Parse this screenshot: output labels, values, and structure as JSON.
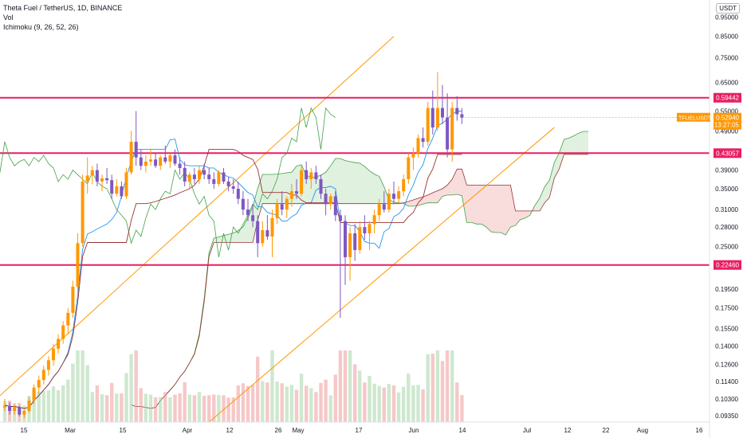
{
  "legend": {
    "symbol_line": "Theta Fuel / TetherUS, 1D, BINANCE",
    "vol": "Vol",
    "ichimoku": "Ichimoku (9, 26, 52, 26)"
  },
  "price_axis": {
    "unit_badge": "USDT",
    "ticks": [
      "0.95000",
      "0.85000",
      "0.75000",
      "0.65000",
      "0.55000",
      "0.49000",
      "0.39000",
      "0.35000",
      "0.31000",
      "0.28000",
      "0.25000",
      "0.19500",
      "0.17500",
      "0.15500",
      "0.14000",
      "0.12600",
      "0.11400",
      "0.10300",
      "0.09350"
    ],
    "tick_values": [
      0.95,
      0.85,
      0.75,
      0.65,
      0.55,
      0.49,
      0.39,
      0.35,
      0.31,
      0.28,
      0.25,
      0.195,
      0.175,
      0.155,
      0.14,
      0.126,
      0.114,
      0.103,
      0.0935
    ]
  },
  "time_axis": {
    "labels": [
      "15",
      "Mar",
      "15",
      "Apr",
      "12",
      "26",
      "May",
      "17",
      "Jun",
      "14",
      "Jul",
      "12",
      "22",
      "Aug",
      "16"
    ]
  },
  "levels": [
    {
      "label": "0.59442",
      "value": 0.59442
    },
    {
      "label": "0.43057",
      "value": 0.43057
    },
    {
      "label": "0.22460",
      "value": 0.2246
    }
  ],
  "current_price": {
    "symbol": "TFUELUSDT",
    "price": "0.52940",
    "countdown": "13:27:05"
  },
  "colors": {
    "level_line": "#e91e63",
    "trend_line": "#ff9800",
    "bull": "#ff9800",
    "bear": "#7e57c2",
    "tenkan": "#2196f3",
    "kijun": "#993333",
    "lagging": "#43a047",
    "cloud_bull": "#a5d6a7",
    "cloud_bear": "#ef9a9a",
    "vol_bull": "#a5d6a7",
    "vol_bear": "#ef9a9a"
  },
  "chart_data": {
    "type": "candlestick",
    "scale": "log",
    "ylim": [
      0.09,
      1.05
    ],
    "candles": [
      {
        "o": 0.098,
        "h": 0.103,
        "l": 0.096,
        "c": 0.099
      },
      {
        "o": 0.099,
        "h": 0.101,
        "l": 0.094,
        "c": 0.096
      },
      {
        "o": 0.096,
        "h": 0.1,
        "l": 0.094,
        "c": 0.098
      },
      {
        "o": 0.098,
        "h": 0.099,
        "l": 0.093,
        "c": 0.094
      },
      {
        "o": 0.094,
        "h": 0.097,
        "l": 0.092,
        "c": 0.096
      },
      {
        "o": 0.096,
        "h": 0.104,
        "l": 0.095,
        "c": 0.102
      },
      {
        "o": 0.102,
        "h": 0.112,
        "l": 0.1,
        "c": 0.11
      },
      {
        "o": 0.11,
        "h": 0.118,
        "l": 0.106,
        "c": 0.115
      },
      {
        "o": 0.115,
        "h": 0.125,
        "l": 0.112,
        "c": 0.122
      },
      {
        "o": 0.122,
        "h": 0.132,
        "l": 0.118,
        "c": 0.129
      },
      {
        "o": 0.129,
        "h": 0.142,
        "l": 0.125,
        "c": 0.138
      },
      {
        "o": 0.138,
        "h": 0.15,
        "l": 0.134,
        "c": 0.146
      },
      {
        "o": 0.146,
        "h": 0.162,
        "l": 0.142,
        "c": 0.158
      },
      {
        "o": 0.158,
        "h": 0.175,
        "l": 0.15,
        "c": 0.17
      },
      {
        "o": 0.17,
        "h": 0.205,
        "l": 0.165,
        "c": 0.198
      },
      {
        "o": 0.198,
        "h": 0.27,
        "l": 0.19,
        "c": 0.255
      },
      {
        "o": 0.255,
        "h": 0.38,
        "l": 0.25,
        "c": 0.365
      },
      {
        "o": 0.365,
        "h": 0.42,
        "l": 0.34,
        "c": 0.378
      },
      {
        "o": 0.378,
        "h": 0.4,
        "l": 0.36,
        "c": 0.39
      },
      {
        "o": 0.39,
        "h": 0.405,
        "l": 0.355,
        "c": 0.365
      },
      {
        "o": 0.365,
        "h": 0.38,
        "l": 0.345,
        "c": 0.372
      },
      {
        "o": 0.372,
        "h": 0.395,
        "l": 0.36,
        "c": 0.368
      },
      {
        "o": 0.368,
        "h": 0.38,
        "l": 0.33,
        "c": 0.34
      },
      {
        "o": 0.34,
        "h": 0.37,
        "l": 0.335,
        "c": 0.355
      },
      {
        "o": 0.355,
        "h": 0.365,
        "l": 0.33,
        "c": 0.335
      },
      {
        "o": 0.335,
        "h": 0.395,
        "l": 0.33,
        "c": 0.385
      },
      {
        "o": 0.385,
        "h": 0.49,
        "l": 0.38,
        "c": 0.46
      },
      {
        "o": 0.46,
        "h": 0.55,
        "l": 0.4,
        "c": 0.42
      },
      {
        "o": 0.42,
        "h": 0.44,
        "l": 0.39,
        "c": 0.4
      },
      {
        "o": 0.4,
        "h": 0.425,
        "l": 0.385,
        "c": 0.41
      },
      {
        "o": 0.41,
        "h": 0.44,
        "l": 0.4,
        "c": 0.415
      },
      {
        "o": 0.415,
        "h": 0.43,
        "l": 0.395,
        "c": 0.4
      },
      {
        "o": 0.4,
        "h": 0.425,
        "l": 0.39,
        "c": 0.42
      },
      {
        "o": 0.42,
        "h": 0.45,
        "l": 0.405,
        "c": 0.41
      },
      {
        "o": 0.41,
        "h": 0.43,
        "l": 0.395,
        "c": 0.425
      },
      {
        "o": 0.425,
        "h": 0.44,
        "l": 0.4,
        "c": 0.405
      },
      {
        "o": 0.405,
        "h": 0.42,
        "l": 0.38,
        "c": 0.395
      },
      {
        "o": 0.395,
        "h": 0.41,
        "l": 0.355,
        "c": 0.365
      },
      {
        "o": 0.365,
        "h": 0.385,
        "l": 0.35,
        "c": 0.38
      },
      {
        "o": 0.38,
        "h": 0.395,
        "l": 0.36,
        "c": 0.37
      },
      {
        "o": 0.37,
        "h": 0.4,
        "l": 0.36,
        "c": 0.39
      },
      {
        "o": 0.39,
        "h": 0.405,
        "l": 0.37,
        "c": 0.38
      },
      {
        "o": 0.38,
        "h": 0.395,
        "l": 0.36,
        "c": 0.37
      },
      {
        "o": 0.37,
        "h": 0.385,
        "l": 0.35,
        "c": 0.36
      },
      {
        "o": 0.36,
        "h": 0.39,
        "l": 0.355,
        "c": 0.385
      },
      {
        "o": 0.385,
        "h": 0.395,
        "l": 0.36,
        "c": 0.365
      },
      {
        "o": 0.365,
        "h": 0.375,
        "l": 0.345,
        "c": 0.355
      },
      {
        "o": 0.355,
        "h": 0.37,
        "l": 0.34,
        "c": 0.35
      },
      {
        "o": 0.35,
        "h": 0.365,
        "l": 0.32,
        "c": 0.33
      },
      {
        "o": 0.33,
        "h": 0.345,
        "l": 0.3,
        "c": 0.31
      },
      {
        "o": 0.31,
        "h": 0.33,
        "l": 0.29,
        "c": 0.3
      },
      {
        "o": 0.3,
        "h": 0.32,
        "l": 0.28,
        "c": 0.29
      },
      {
        "o": 0.29,
        "h": 0.3,
        "l": 0.235,
        "c": 0.255
      },
      {
        "o": 0.255,
        "h": 0.29,
        "l": 0.25,
        "c": 0.275
      },
      {
        "o": 0.275,
        "h": 0.3,
        "l": 0.26,
        "c": 0.265
      },
      {
        "o": 0.265,
        "h": 0.31,
        "l": 0.235,
        "c": 0.295
      },
      {
        "o": 0.295,
        "h": 0.33,
        "l": 0.285,
        "c": 0.32
      },
      {
        "o": 0.32,
        "h": 0.345,
        "l": 0.3,
        "c": 0.31
      },
      {
        "o": 0.31,
        "h": 0.335,
        "l": 0.295,
        "c": 0.33
      },
      {
        "o": 0.33,
        "h": 0.36,
        "l": 0.315,
        "c": 0.345
      },
      {
        "o": 0.345,
        "h": 0.37,
        "l": 0.33,
        "c": 0.34
      },
      {
        "o": 0.34,
        "h": 0.4,
        "l": 0.335,
        "c": 0.39
      },
      {
        "o": 0.39,
        "h": 0.41,
        "l": 0.36,
        "c": 0.37
      },
      {
        "o": 0.37,
        "h": 0.395,
        "l": 0.35,
        "c": 0.385
      },
      {
        "o": 0.385,
        "h": 0.4,
        "l": 0.36,
        "c": 0.37
      },
      {
        "o": 0.37,
        "h": 0.38,
        "l": 0.33,
        "c": 0.34
      },
      {
        "o": 0.34,
        "h": 0.35,
        "l": 0.3,
        "c": 0.32
      },
      {
        "o": 0.32,
        "h": 0.34,
        "l": 0.31,
        "c": 0.335
      },
      {
        "o": 0.335,
        "h": 0.345,
        "l": 0.29,
        "c": 0.3
      },
      {
        "o": 0.3,
        "h": 0.31,
        "l": 0.165,
        "c": 0.29
      },
      {
        "o": 0.29,
        "h": 0.3,
        "l": 0.2,
        "c": 0.235
      },
      {
        "o": 0.235,
        "h": 0.28,
        "l": 0.205,
        "c": 0.27
      },
      {
        "o": 0.27,
        "h": 0.285,
        "l": 0.23,
        "c": 0.245
      },
      {
        "o": 0.245,
        "h": 0.29,
        "l": 0.24,
        "c": 0.28
      },
      {
        "o": 0.28,
        "h": 0.3,
        "l": 0.26,
        "c": 0.27
      },
      {
        "o": 0.27,
        "h": 0.29,
        "l": 0.245,
        "c": 0.285
      },
      {
        "o": 0.285,
        "h": 0.31,
        "l": 0.27,
        "c": 0.3
      },
      {
        "o": 0.3,
        "h": 0.33,
        "l": 0.29,
        "c": 0.32
      },
      {
        "o": 0.32,
        "h": 0.345,
        "l": 0.305,
        "c": 0.31
      },
      {
        "o": 0.31,
        "h": 0.35,
        "l": 0.305,
        "c": 0.34
      },
      {
        "o": 0.34,
        "h": 0.365,
        "l": 0.32,
        "c": 0.33
      },
      {
        "o": 0.33,
        "h": 0.355,
        "l": 0.32,
        "c": 0.345
      },
      {
        "o": 0.345,
        "h": 0.38,
        "l": 0.335,
        "c": 0.37
      },
      {
        "o": 0.37,
        "h": 0.43,
        "l": 0.36,
        "c": 0.42
      },
      {
        "o": 0.42,
        "h": 0.445,
        "l": 0.39,
        "c": 0.43
      },
      {
        "o": 0.43,
        "h": 0.48,
        "l": 0.42,
        "c": 0.47
      },
      {
        "o": 0.47,
        "h": 0.5,
        "l": 0.445,
        "c": 0.46
      },
      {
        "o": 0.46,
        "h": 0.58,
        "l": 0.45,
        "c": 0.56
      },
      {
        "o": 0.56,
        "h": 0.62,
        "l": 0.48,
        "c": 0.5
      },
      {
        "o": 0.5,
        "h": 0.69,
        "l": 0.49,
        "c": 0.56
      },
      {
        "o": 0.56,
        "h": 0.64,
        "l": 0.51,
        "c": 0.53
      },
      {
        "o": 0.53,
        "h": 0.61,
        "l": 0.42,
        "c": 0.44
      },
      {
        "o": 0.44,
        "h": 0.58,
        "l": 0.41,
        "c": 0.56
      },
      {
        "o": 0.56,
        "h": 0.6,
        "l": 0.52,
        "c": 0.54
      },
      {
        "o": 0.54,
        "h": 0.56,
        "l": 0.51,
        "c": 0.5294
      }
    ]
  }
}
